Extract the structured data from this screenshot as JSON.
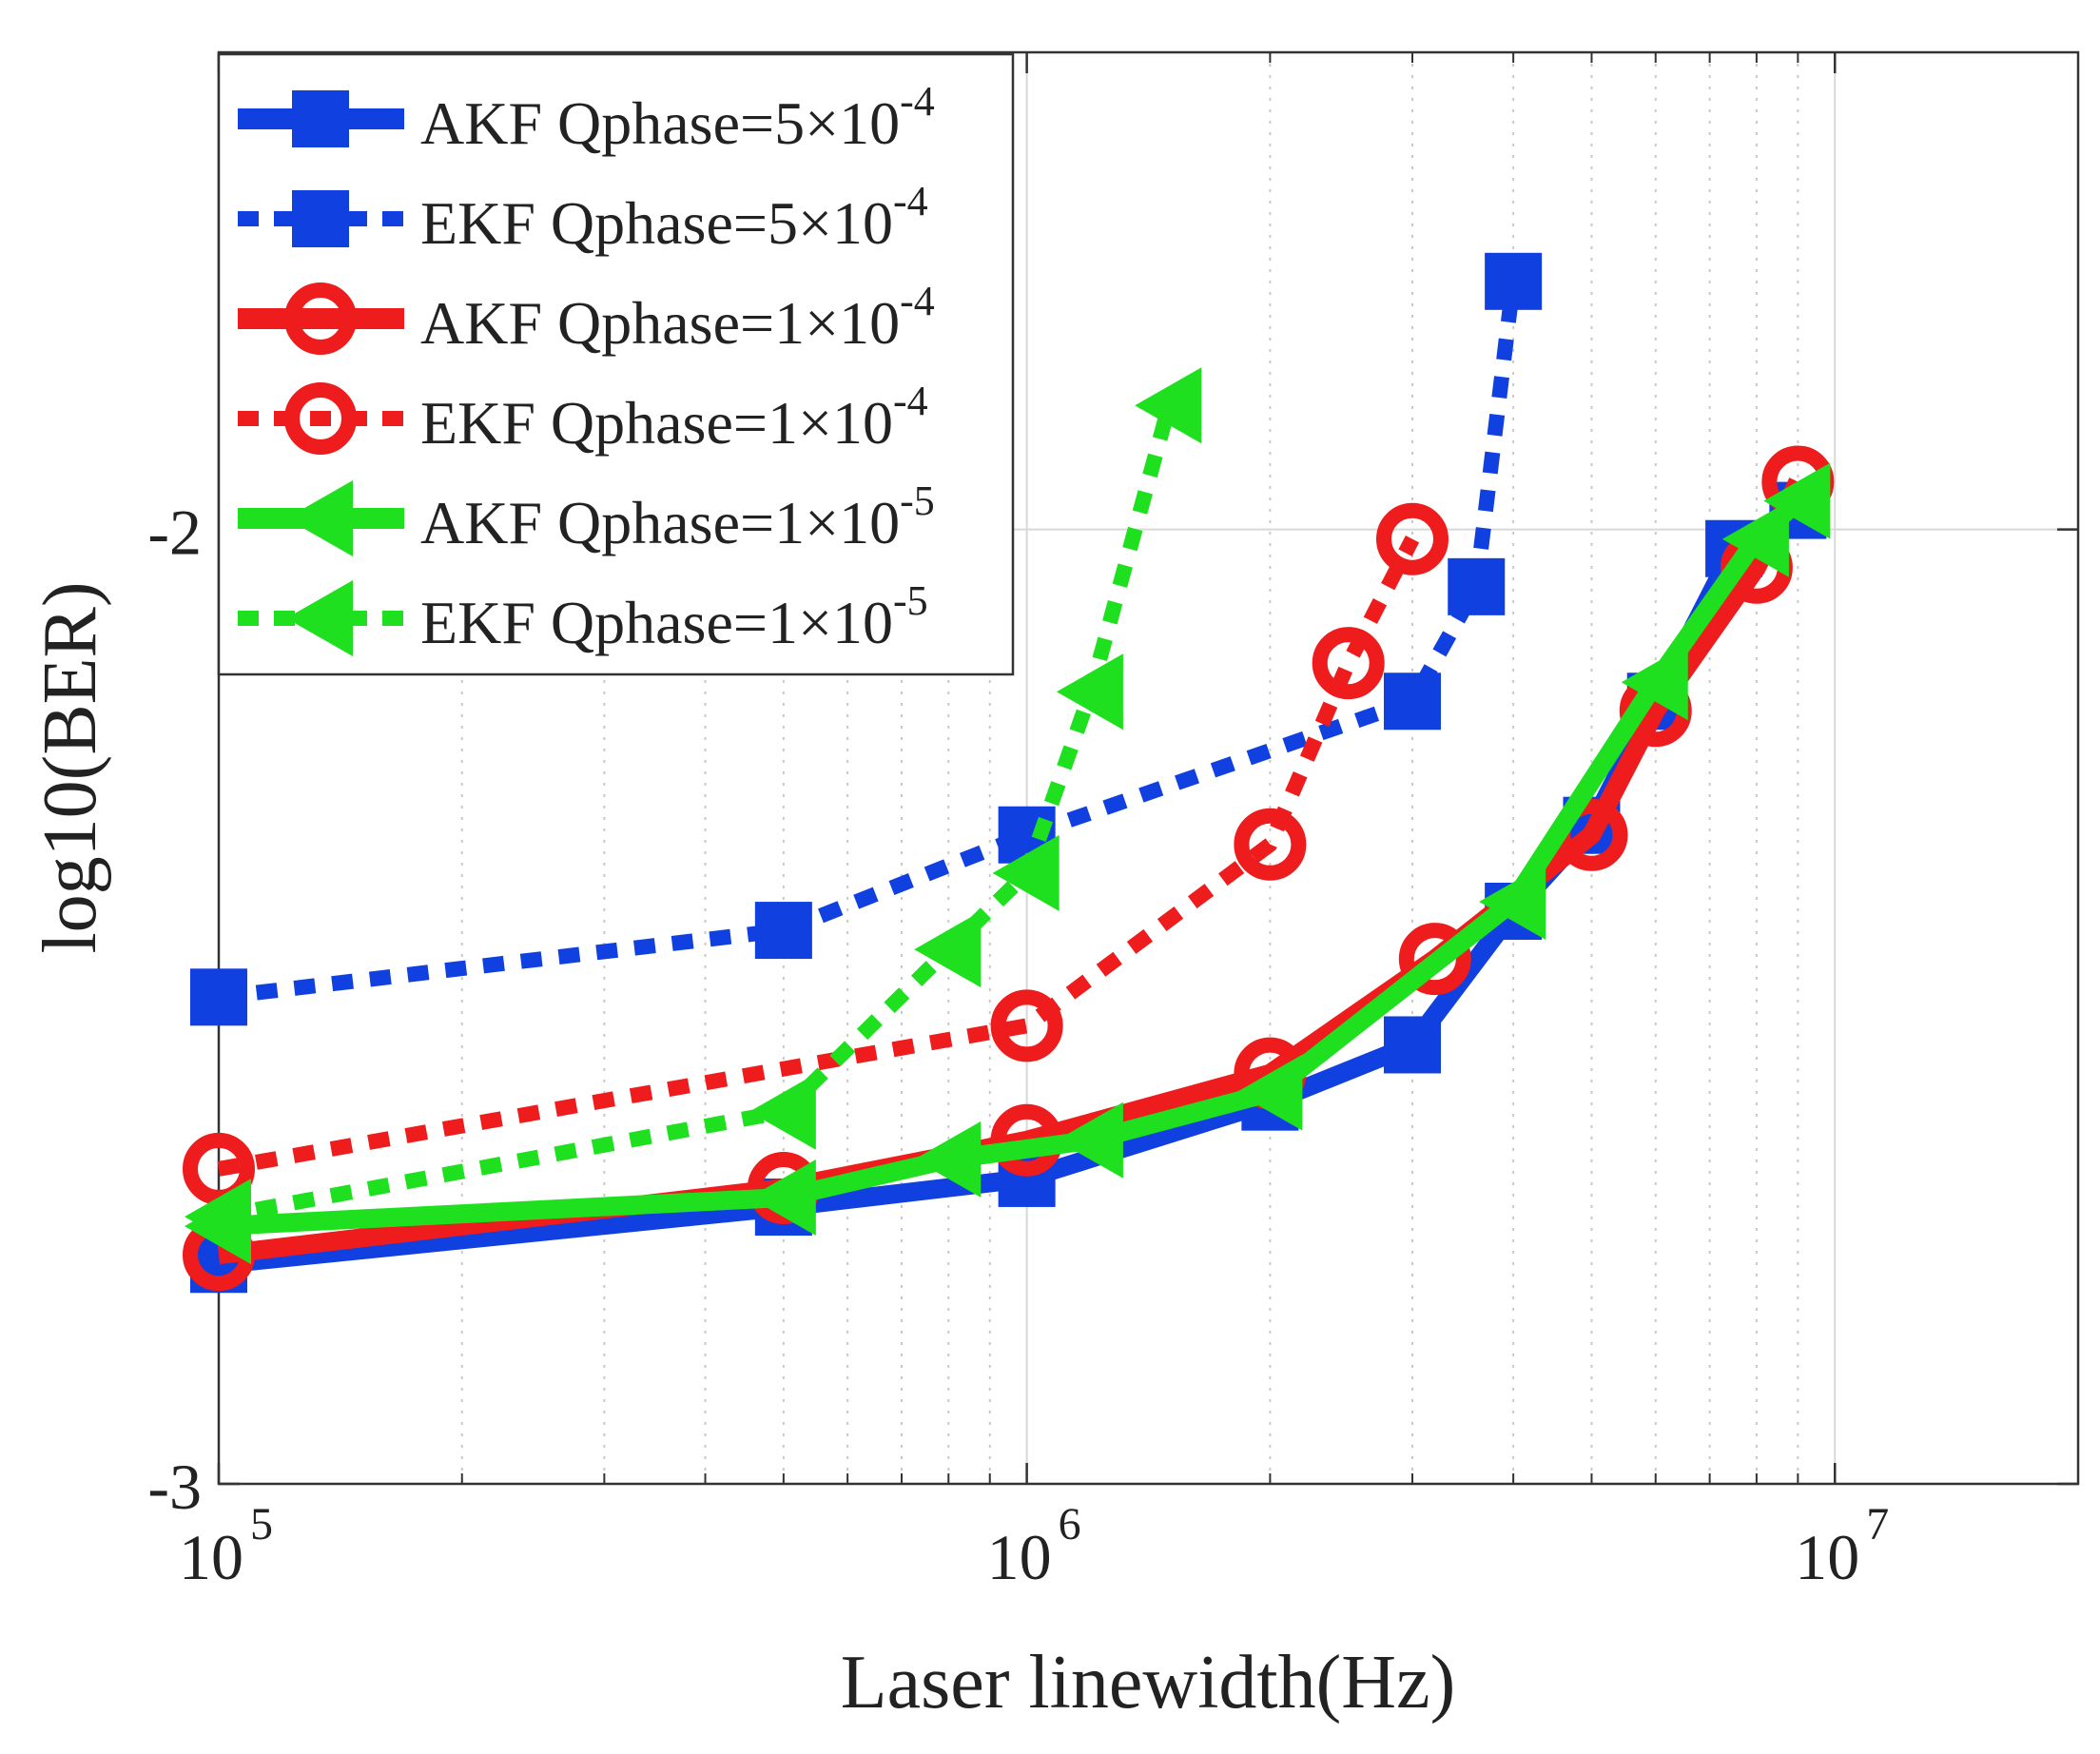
{
  "chart_data": {
    "type": "line",
    "xscale": "log",
    "xlim": [
      100000,
      20000000
    ],
    "ylim": [
      -3,
      -1.5
    ],
    "xlabel": "Laser linewidth(Hz)",
    "ylabel": "log10(BER)",
    "title": "",
    "grid": true,
    "legend_position": "top-left",
    "x_ticks": [
      {
        "base": "10",
        "exp": "5",
        "value": 100000
      },
      {
        "base": "10",
        "exp": "6",
        "value": 1000000
      },
      {
        "base": "10",
        "exp": "7",
        "value": 10000000
      }
    ],
    "y_ticks": [
      {
        "label": "-2",
        "value": -2
      },
      {
        "label": "-3",
        "value": -3
      }
    ],
    "series": [
      {
        "name": "AKF Qphase=5×10",
        "exp": "-4",
        "color": "#1040e0",
        "dashed": false,
        "marker": "square",
        "points": [
          [
            100000,
            -2.77
          ],
          [
            500000,
            -2.71
          ],
          [
            1000000,
            -2.68
          ],
          [
            2000000,
            -2.6
          ],
          [
            3000000,
            -2.54
          ],
          [
            4000000,
            -2.4
          ],
          [
            5000000,
            -2.31
          ],
          [
            6000000,
            -2.18
          ],
          [
            7500000,
            -2.02
          ],
          [
            9000000,
            -1.98
          ]
        ]
      },
      {
        "name": "EKF Qphase=5×10",
        "exp": "-4",
        "color": "#1040e0",
        "dashed": true,
        "marker": "square",
        "points": [
          [
            100000,
            -2.49
          ],
          [
            500000,
            -2.42
          ],
          [
            1000000,
            -2.32
          ],
          [
            3000000,
            -2.18
          ],
          [
            3600000,
            -2.06
          ],
          [
            4000000,
            -1.74
          ]
        ]
      },
      {
        "name": "AKF Qphase=1×10",
        "exp": "-4",
        "color": "#ee1c1c",
        "dashed": false,
        "marker": "circle",
        "points": [
          [
            100000,
            -2.76
          ],
          [
            500000,
            -2.69
          ],
          [
            1000000,
            -2.64
          ],
          [
            2000000,
            -2.57
          ],
          [
            3200000,
            -2.45
          ],
          [
            5000000,
            -2.32
          ],
          [
            6000000,
            -2.19
          ],
          [
            8000000,
            -2.04
          ],
          [
            9000000,
            -1.95
          ]
        ]
      },
      {
        "name": "EKF Qphase=1×10",
        "exp": "-4",
        "color": "#ee1c1c",
        "dashed": true,
        "marker": "circle",
        "points": [
          [
            100000,
            -2.67
          ],
          [
            1000000,
            -2.52
          ],
          [
            2000000,
            -2.33
          ],
          [
            2500000,
            -2.14
          ],
          [
            3000000,
            -2.01
          ]
        ]
      },
      {
        "name": "AKF Qphase=1×10",
        "exp": "-5",
        "color": "#1fe01f",
        "dashed": false,
        "marker": "triangle-left",
        "points": [
          [
            100000,
            -2.73
          ],
          [
            500000,
            -2.7
          ],
          [
            800000,
            -2.66
          ],
          [
            1200000,
            -2.64
          ],
          [
            2000000,
            -2.59
          ],
          [
            4000000,
            -2.39
          ],
          [
            6000000,
            -2.16
          ],
          [
            8000000,
            -2.01
          ],
          [
            9000000,
            -1.97
          ]
        ]
      },
      {
        "name": "EKF Qphase=1×10",
        "exp": "-5",
        "color": "#1fe01f",
        "dashed": true,
        "marker": "triangle-left",
        "points": [
          [
            100000,
            -2.72
          ],
          [
            500000,
            -2.61
          ],
          [
            800000,
            -2.44
          ],
          [
            1000000,
            -2.36
          ],
          [
            1200000,
            -2.17
          ],
          [
            1500000,
            -1.87
          ]
        ]
      }
    ]
  }
}
